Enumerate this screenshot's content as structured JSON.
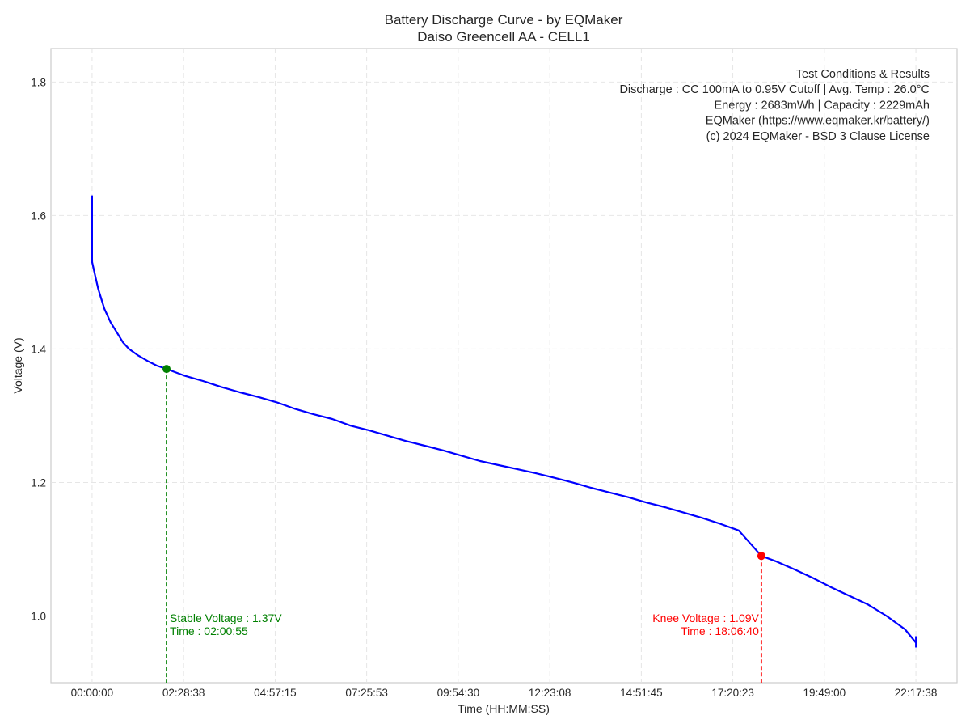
{
  "chart_data": {
    "type": "line",
    "title": "Battery Discharge Curve - by EQMaker",
    "subtitle": "Daiso Greencell AA - CELL1",
    "xlabel": "Time (HH:MM:SS)",
    "ylabel": "Voltage (V)",
    "x_unit": "HH:MM:SS",
    "xlim": [
      "-01:06:50",
      "23:24:28"
    ],
    "ylim": [
      0.9,
      1.85
    ],
    "x_ticks": [
      "00:00:00",
      "02:28:38",
      "04:57:15",
      "07:25:53",
      "09:54:30",
      "12:23:08",
      "14:51:45",
      "17:20:23",
      "19:49:00",
      "22:17:38"
    ],
    "y_ticks": [
      1.0,
      1.2,
      1.4,
      1.6,
      1.8
    ],
    "y_tick_labels": [
      "1.0",
      "1.2",
      "1.4",
      "1.6",
      "1.8"
    ],
    "grid": true,
    "grid_style": "dashed",
    "series": [
      {
        "color": "#0000ff",
        "x": [
          "00:00:00",
          "00:00:01",
          "00:00:10",
          "00:05:00",
          "00:10:00",
          "00:15:00",
          "00:20:00",
          "00:30:00",
          "00:40:00",
          "00:50:00",
          "01:00:00",
          "01:15:00",
          "01:30:00",
          "01:45:00",
          "02:00:55",
          "02:30:00",
          "03:00:00",
          "03:30:00",
          "04:00:00",
          "04:30:00",
          "05:00:00",
          "05:30:00",
          "06:00:00",
          "06:30:00",
          "07:00:00",
          "07:30:00",
          "08:00:00",
          "08:30:00",
          "09:00:00",
          "09:30:00",
          "10:00:00",
          "10:30:00",
          "11:00:00",
          "11:30:00",
          "12:00:00",
          "12:30:00",
          "13:00:00",
          "13:30:00",
          "14:00:00",
          "14:30:00",
          "15:00:00",
          "15:30:00",
          "16:00:00",
          "16:30:00",
          "17:00:00",
          "17:30:00",
          "18:06:40",
          "18:30:00",
          "19:00:00",
          "19:30:00",
          "20:00:00",
          "20:30:00",
          "21:00:00",
          "21:30:00",
          "22:00:00",
          "22:17:38"
        ],
        "y": [
          1.63,
          1.535,
          1.53,
          1.51,
          1.49,
          1.475,
          1.46,
          1.44,
          1.425,
          1.41,
          1.4,
          1.39,
          1.382,
          1.375,
          1.37,
          1.36,
          1.352,
          1.343,
          1.335,
          1.328,
          1.32,
          1.31,
          1.302,
          1.295,
          1.285,
          1.278,
          1.27,
          1.262,
          1.255,
          1.248,
          1.24,
          1.232,
          1.226,
          1.22,
          1.214,
          1.207,
          1.2,
          1.192,
          1.185,
          1.178,
          1.17,
          1.163,
          1.155,
          1.147,
          1.138,
          1.128,
          1.09,
          1.082,
          1.07,
          1.057,
          1.043,
          1.03,
          1.017,
          1.0,
          0.98,
          0.96
        ]
      }
    ],
    "annotations": {
      "stable": {
        "text_voltage": "Stable Voltage : 1.37V",
        "text_time": "Time : 02:00:55",
        "x": "02:00:55",
        "y": 1.37,
        "color": "#008000"
      },
      "knee": {
        "text_voltage": "Knee Voltage : 1.09V",
        "text_time": "Time : 18:06:40",
        "x": "18:06:40",
        "y": 1.09,
        "color": "#ff0000"
      }
    },
    "info_box": {
      "lines": [
        "Test Conditions & Results",
        "Discharge : CC 100mA to 0.95V Cutoff | Avg. Temp : 26.0°C",
        "Energy : 2683mWh | Capacity : 2229mAh",
        "EQMaker (https://www.eqmaker.kr/battery/)",
        "(c) 2024 EQMaker - BSD 3 Clause License"
      ],
      "placement": "top-right"
    }
  }
}
